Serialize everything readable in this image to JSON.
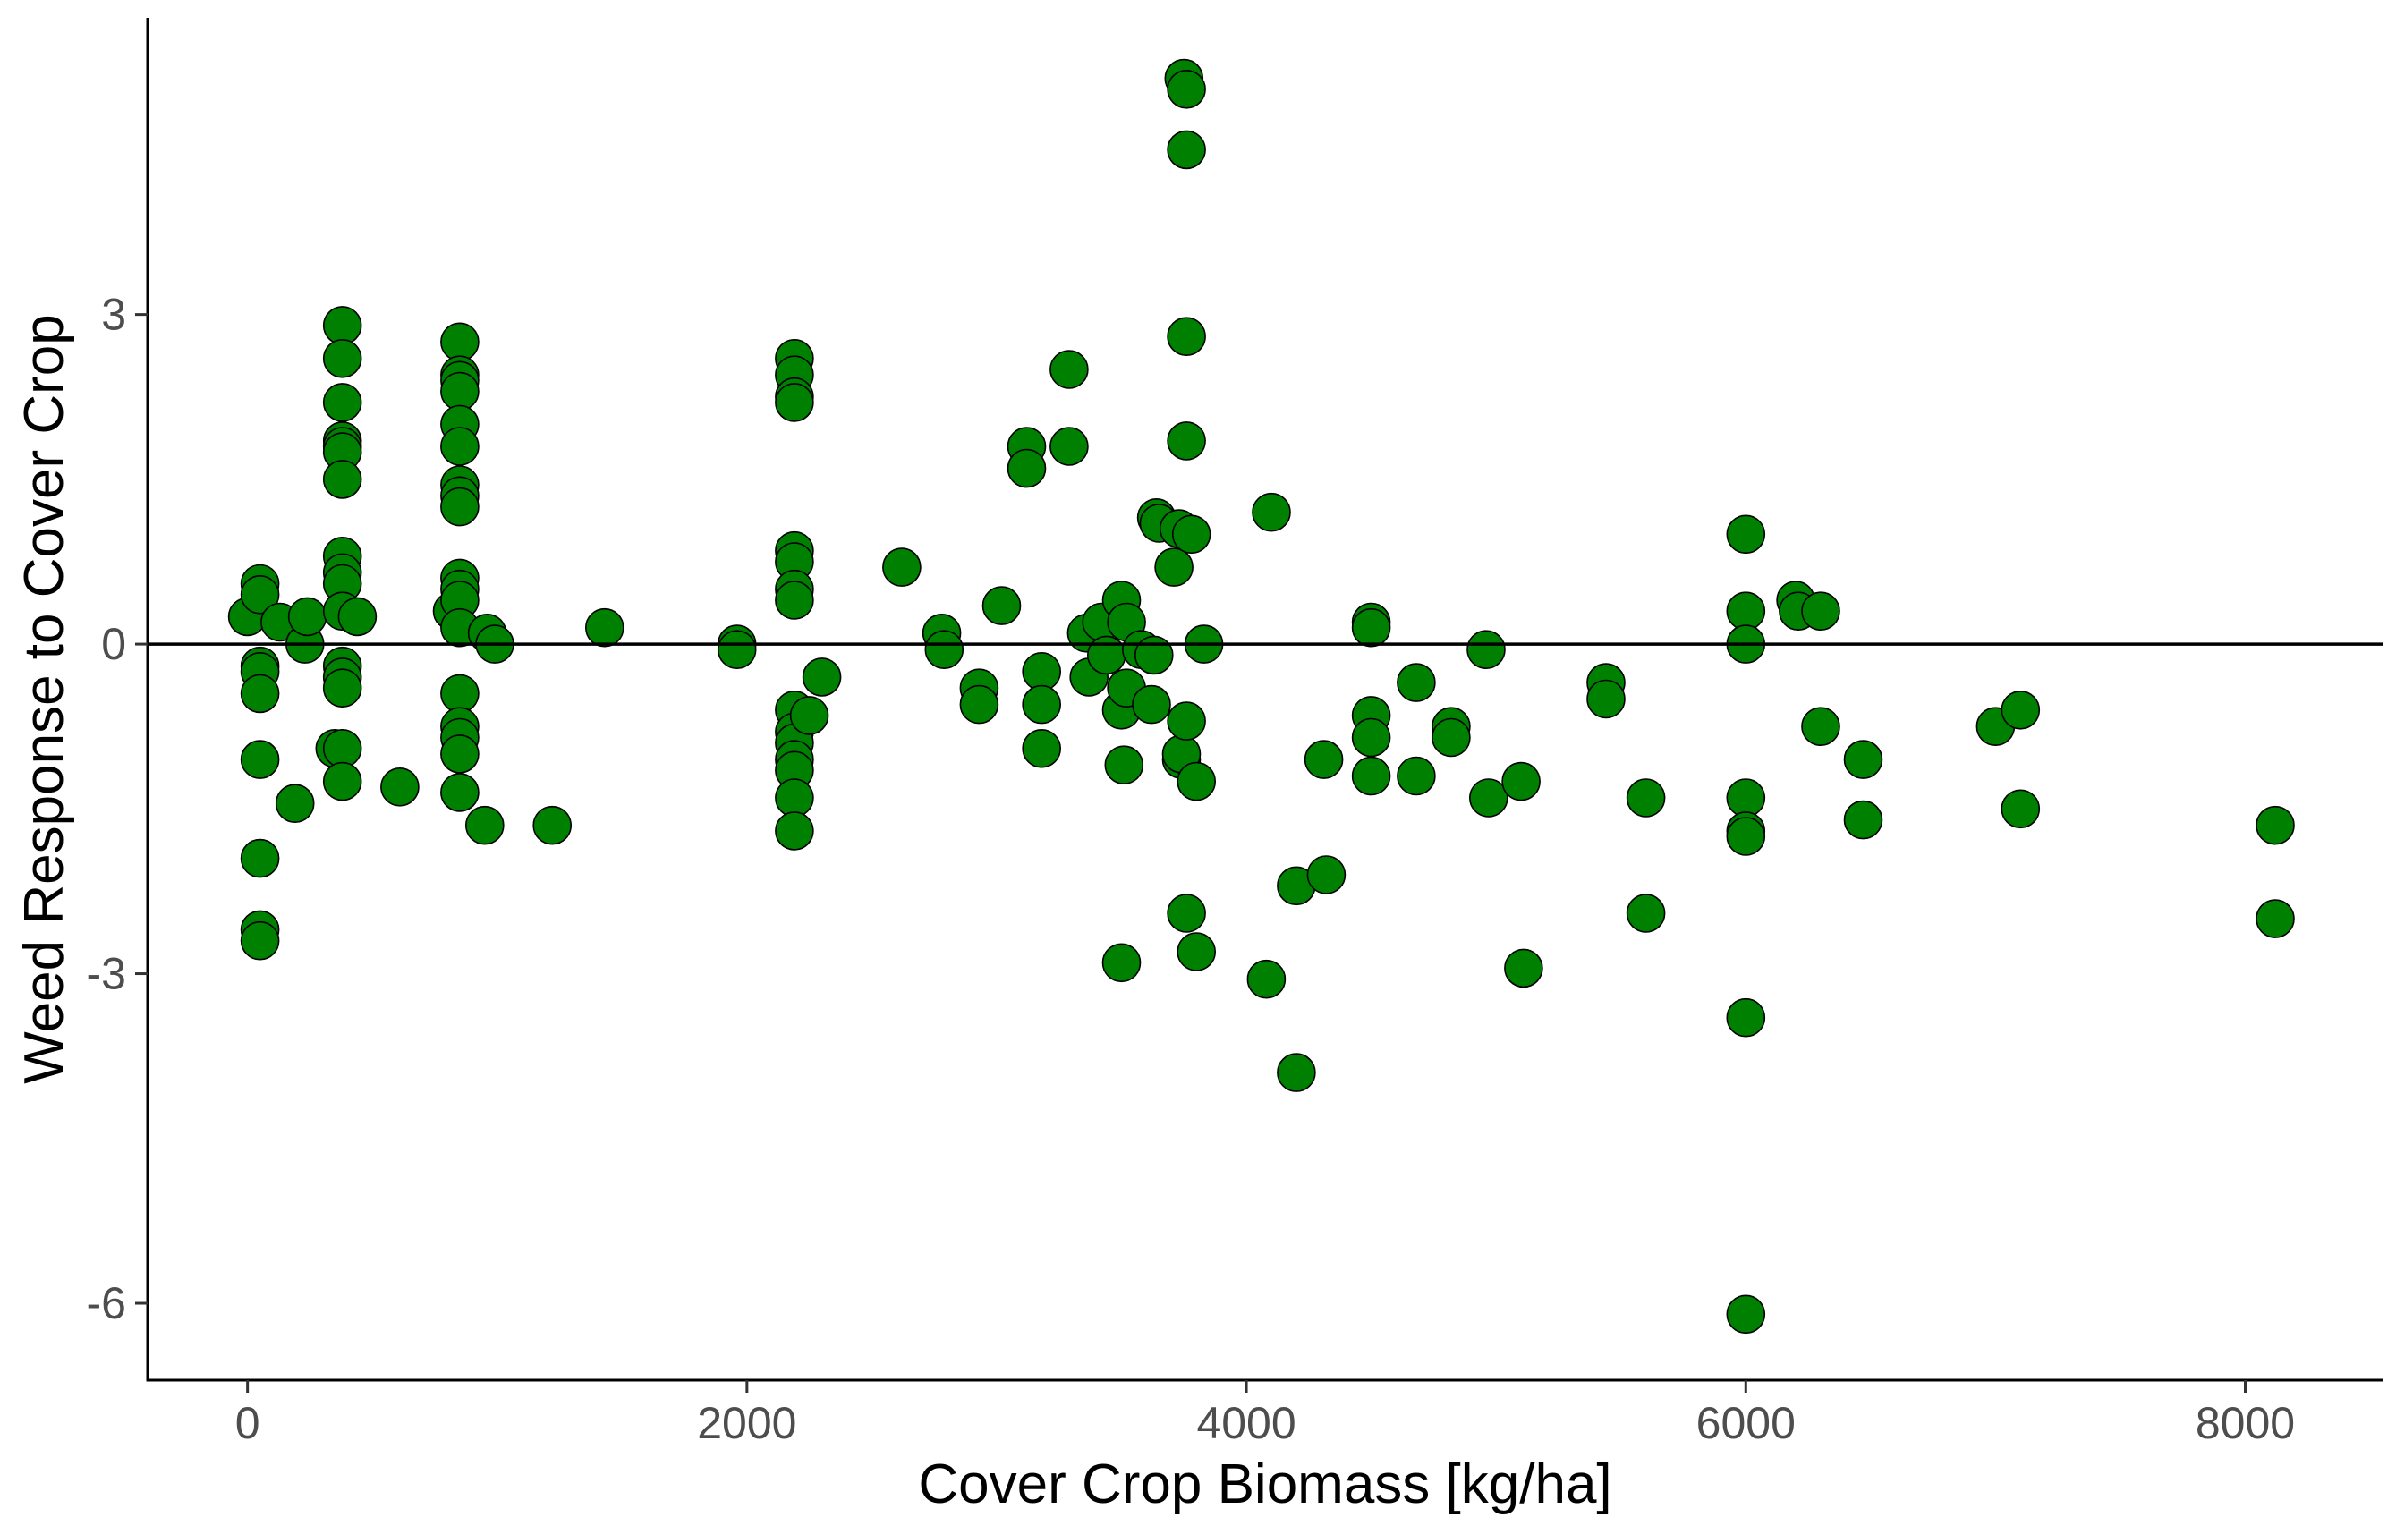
{
  "chart_data": {
    "type": "scatter",
    "xlabel": "Cover Crop Biomass [kg/ha]",
    "ylabel": "Weed Response to Cover Crop",
    "xlim": [
      -400,
      8550
    ],
    "ylim": [
      -6.7,
      5.7
    ],
    "xticks": [
      0,
      2000,
      4000,
      6000,
      8000
    ],
    "xtick_labels": [
      "0",
      "2000",
      "4000",
      "6000",
      "8000"
    ],
    "yticks": [
      3,
      0,
      -3,
      -6
    ],
    "ytick_labels": [
      "3",
      "0",
      "-3",
      "-6"
    ],
    "reference_line_y": 0,
    "grid": false,
    "point_color": "#008000",
    "point_edge_color": "#000000",
    "points": [
      [
        0,
        0.25
      ],
      [
        50,
        0.55
      ],
      [
        50,
        0.45
      ],
      [
        50,
        -0.2
      ],
      [
        50,
        -0.25
      ],
      [
        50,
        -0.45
      ],
      [
        50,
        -1.05
      ],
      [
        50,
        -1.95
      ],
      [
        50,
        -2.6
      ],
      [
        50,
        -2.7
      ],
      [
        130,
        0.2
      ],
      [
        190,
        -1.45
      ],
      [
        230,
        0.0
      ],
      [
        240,
        0.25
      ],
      [
        380,
        2.9
      ],
      [
        380,
        2.6
      ],
      [
        380,
        2.2
      ],
      [
        380,
        1.85
      ],
      [
        380,
        1.8
      ],
      [
        380,
        1.75
      ],
      [
        380,
        1.5
      ],
      [
        380,
        0.8
      ],
      [
        380,
        0.65
      ],
      [
        380,
        0.55
      ],
      [
        380,
        0.3
      ],
      [
        380,
        -0.2
      ],
      [
        380,
        -0.3
      ],
      [
        380,
        -0.4
      ],
      [
        350,
        -0.95
      ],
      [
        380,
        -0.95
      ],
      [
        380,
        -1.25
      ],
      [
        440,
        0.25
      ],
      [
        610,
        -1.3
      ],
      [
        820,
        0.3
      ],
      [
        850,
        2.75
      ],
      [
        850,
        2.45
      ],
      [
        850,
        2.4
      ],
      [
        850,
        2.3
      ],
      [
        850,
        2.0
      ],
      [
        850,
        1.8
      ],
      [
        850,
        1.45
      ],
      [
        850,
        1.35
      ],
      [
        850,
        1.25
      ],
      [
        850,
        0.6
      ],
      [
        850,
        0.5
      ],
      [
        850,
        0.4
      ],
      [
        850,
        0.15
      ],
      [
        850,
        -0.45
      ],
      [
        850,
        -0.75
      ],
      [
        850,
        -0.85
      ],
      [
        850,
        -1.0
      ],
      [
        850,
        -1.35
      ],
      [
        950,
        -1.65
      ],
      [
        960,
        0.1
      ],
      [
        990,
        0.0
      ],
      [
        1220,
        -1.65
      ],
      [
        1430,
        0.15
      ],
      [
        1960,
        0.0
      ],
      [
        1960,
        -0.05
      ],
      [
        2190,
        2.6
      ],
      [
        2190,
        2.45
      ],
      [
        2190,
        2.25
      ],
      [
        2190,
        2.2
      ],
      [
        2190,
        0.85
      ],
      [
        2190,
        0.75
      ],
      [
        2190,
        0.5
      ],
      [
        2190,
        0.4
      ],
      [
        2190,
        -0.6
      ],
      [
        2190,
        -0.8
      ],
      [
        2190,
        -0.9
      ],
      [
        2190,
        -1.05
      ],
      [
        2190,
        -1.15
      ],
      [
        2190,
        -1.4
      ],
      [
        2190,
        -1.7
      ],
      [
        2250,
        -0.65
      ],
      [
        2300,
        -0.3
      ],
      [
        2620,
        0.7
      ],
      [
        2780,
        0.1
      ],
      [
        2790,
        -0.05
      ],
      [
        2930,
        -0.4
      ],
      [
        2930,
        -0.55
      ],
      [
        3020,
        0.35
      ],
      [
        3120,
        1.8
      ],
      [
        3120,
        1.6
      ],
      [
        3180,
        -0.25
      ],
      [
        3180,
        -0.55
      ],
      [
        3180,
        -0.95
      ],
      [
        3290,
        2.5
      ],
      [
        3290,
        1.8
      ],
      [
        3360,
        0.1
      ],
      [
        3370,
        -0.3
      ],
      [
        3420,
        0.2
      ],
      [
        3440,
        -0.1
      ],
      [
        3500,
        -2.9
      ],
      [
        3500,
        0.4
      ],
      [
        3500,
        -0.6
      ],
      [
        3510,
        -1.1
      ],
      [
        3520,
        0.2
      ],
      [
        3520,
        -0.4
      ],
      [
        3580,
        -0.05
      ],
      [
        3620,
        -0.55
      ],
      [
        3630,
        -0.1
      ],
      [
        3640,
        1.15
      ],
      [
        3650,
        1.1
      ],
      [
        3710,
        0.7
      ],
      [
        3730,
        1.05
      ],
      [
        3740,
        -1.05
      ],
      [
        3740,
        -1.0
      ],
      [
        3750,
        5.15
      ],
      [
        3760,
        5.05
      ],
      [
        3760,
        4.5
      ],
      [
        3760,
        2.8
      ],
      [
        3760,
        1.85
      ],
      [
        3760,
        -0.7
      ],
      [
        3760,
        -2.45
      ],
      [
        3780,
        1.0
      ],
      [
        3800,
        -1.25
      ],
      [
        3800,
        -2.8
      ],
      [
        3830,
        0.0
      ],
      [
        4080,
        -3.05
      ],
      [
        4100,
        1.2
      ],
      [
        4200,
        -2.2
      ],
      [
        4200,
        -3.9
      ],
      [
        4310,
        -1.05
      ],
      [
        4320,
        -2.1
      ],
      [
        4500,
        0.2
      ],
      [
        4500,
        0.15
      ],
      [
        4500,
        -0.65
      ],
      [
        4500,
        -0.85
      ],
      [
        4500,
        -1.2
      ],
      [
        4680,
        -0.35
      ],
      [
        4680,
        -1.2
      ],
      [
        4820,
        -0.75
      ],
      [
        4820,
        -0.85
      ],
      [
        4960,
        -0.05
      ],
      [
        4970,
        -1.4
      ],
      [
        5100,
        -1.25
      ],
      [
        5110,
        -2.95
      ],
      [
        5440,
        -0.35
      ],
      [
        5440,
        -0.5
      ],
      [
        5600,
        -1.4
      ],
      [
        5600,
        -2.45
      ],
      [
        6000,
        1.0
      ],
      [
        6000,
        0.3
      ],
      [
        6000,
        0.0
      ],
      [
        6000,
        -1.4
      ],
      [
        6000,
        -1.7
      ],
      [
        6000,
        -1.75
      ],
      [
        6000,
        -3.4
      ],
      [
        6000,
        -6.1
      ],
      [
        6200,
        0.4
      ],
      [
        6210,
        0.3
      ],
      [
        6300,
        0.3
      ],
      [
        6300,
        -0.75
      ],
      [
        6470,
        -1.05
      ],
      [
        6470,
        -1.6
      ],
      [
        7000,
        -0.75
      ],
      [
        7100,
        -0.6
      ],
      [
        7100,
        -1.5
      ],
      [
        8120,
        -1.65
      ],
      [
        8120,
        -2.5
      ]
    ]
  }
}
